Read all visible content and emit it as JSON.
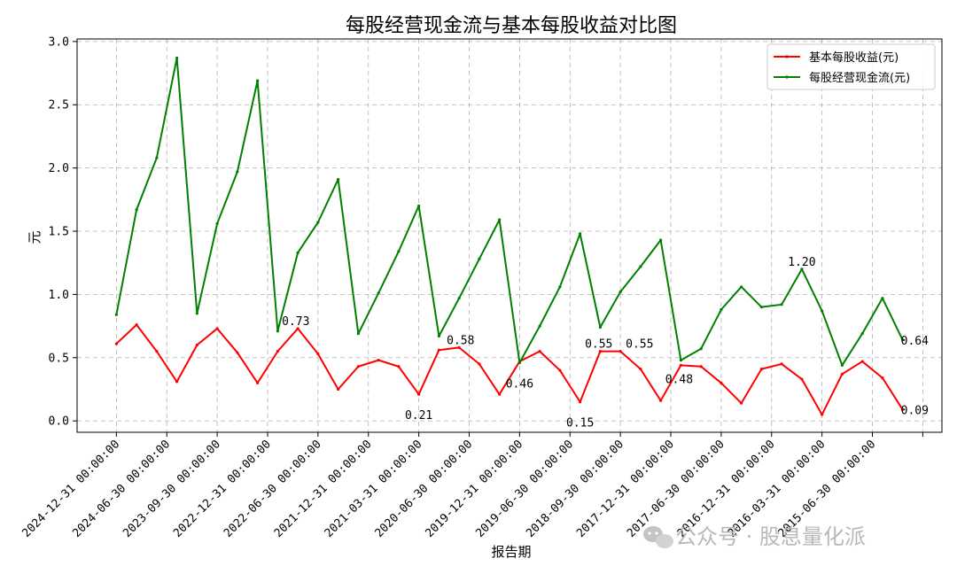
{
  "chart_data": {
    "type": "line",
    "title": "每股经营现金流与基本每股收益对比图",
    "xlabel": "报告期",
    "ylabel": "元",
    "ylim": [
      -0.09,
      3.02
    ],
    "yticks": [
      "0.0",
      "0.5",
      "1.0",
      "1.5",
      "2.0",
      "2.5",
      "3.0"
    ],
    "grid": true,
    "legend_position": "top-right",
    "x_ticks": [
      "2024-12-31 00:00:00",
      "2024-06-30 00:00:00",
      "2023-09-30 00:00:00",
      "2022-12-31 00:00:00",
      "2022-06-30 00:00:00",
      "2021-12-31 00:00:00",
      "2021-03-31 00:00:00",
      "2020-06-30 00:00:00",
      "2019-12-31 00:00:00",
      "2019-06-30 00:00:00",
      "2018-09-30 00:00:00",
      "2017-12-31 00:00:00",
      "2017-06-30 00:00:00",
      "2016-12-31 00:00:00",
      "2016-03-31 00:00:00",
      "2015-06-30 00:00:00"
    ],
    "x_tick_positions": [
      0,
      2.5,
      5,
      7.5,
      10,
      12.5,
      15,
      17.5,
      20,
      22.5,
      25,
      27.5,
      30,
      32.5,
      35,
      37.5,
      40
    ],
    "series": [
      {
        "name": "基本每股收益(元)",
        "color": "#ff0000",
        "values": [
          0.61,
          0.76,
          0.55,
          0.31,
          0.6,
          0.73,
          0.54,
          0.3,
          0.55,
          0.73,
          0.53,
          0.25,
          0.43,
          0.48,
          0.43,
          0.21,
          0.56,
          0.58,
          0.45,
          0.21,
          0.47,
          0.55,
          0.4,
          0.15,
          0.55,
          0.55,
          0.41,
          0.16,
          0.44,
          0.43,
          0.3,
          0.14,
          0.41,
          0.45,
          0.33,
          0.05,
          0.37,
          0.47,
          0.34,
          0.09
        ]
      },
      {
        "name": "每股经营现金流(元)",
        "color": "#008000",
        "values": [
          0.84,
          1.67,
          2.08,
          2.87,
          0.85,
          1.56,
          1.97,
          2.69,
          0.71,
          1.33,
          1.57,
          1.91,
          0.69,
          1.01,
          1.34,
          1.7,
          0.67,
          0.97,
          1.28,
          1.59,
          0.46,
          0.75,
          1.06,
          1.48,
          0.74,
          1.02,
          1.22,
          1.43,
          0.48,
          0.57,
          0.88,
          1.06,
          0.9,
          0.92,
          1.2,
          0.87,
          0.44,
          0.69,
          0.97,
          0.64
        ]
      }
    ],
    "annotations": [
      {
        "text": "0.73",
        "x": 9,
        "y": 0.73,
        "series": 0
      },
      {
        "text": "0.21",
        "x": 15,
        "y": 0.21,
        "series": 0
      },
      {
        "text": "0.58",
        "x": 17,
        "y": 0.58,
        "series": 0
      },
      {
        "text": "0.46",
        "x": 20,
        "y": 0.46,
        "series": 1
      },
      {
        "text": "0.15",
        "x": 23,
        "y": 0.15,
        "series": 0
      },
      {
        "text": "0.55",
        "x": 24,
        "y": 0.55,
        "series": 0
      },
      {
        "text": "0.55",
        "x": 25,
        "y": 0.55,
        "series": 0
      },
      {
        "text": "0.48",
        "x": 28,
        "y": 0.48,
        "series": 1
      },
      {
        "text": "1.20",
        "x": 34,
        "y": 1.2,
        "series": 1
      },
      {
        "text": "0.64",
        "x": 39,
        "y": 0.64,
        "series": 1
      },
      {
        "text": "0.09",
        "x": 39,
        "y": 0.09,
        "series": 0
      }
    ]
  },
  "watermark": {
    "text": "公众号 · 股息量化派",
    "icon": "wechat-icon"
  }
}
